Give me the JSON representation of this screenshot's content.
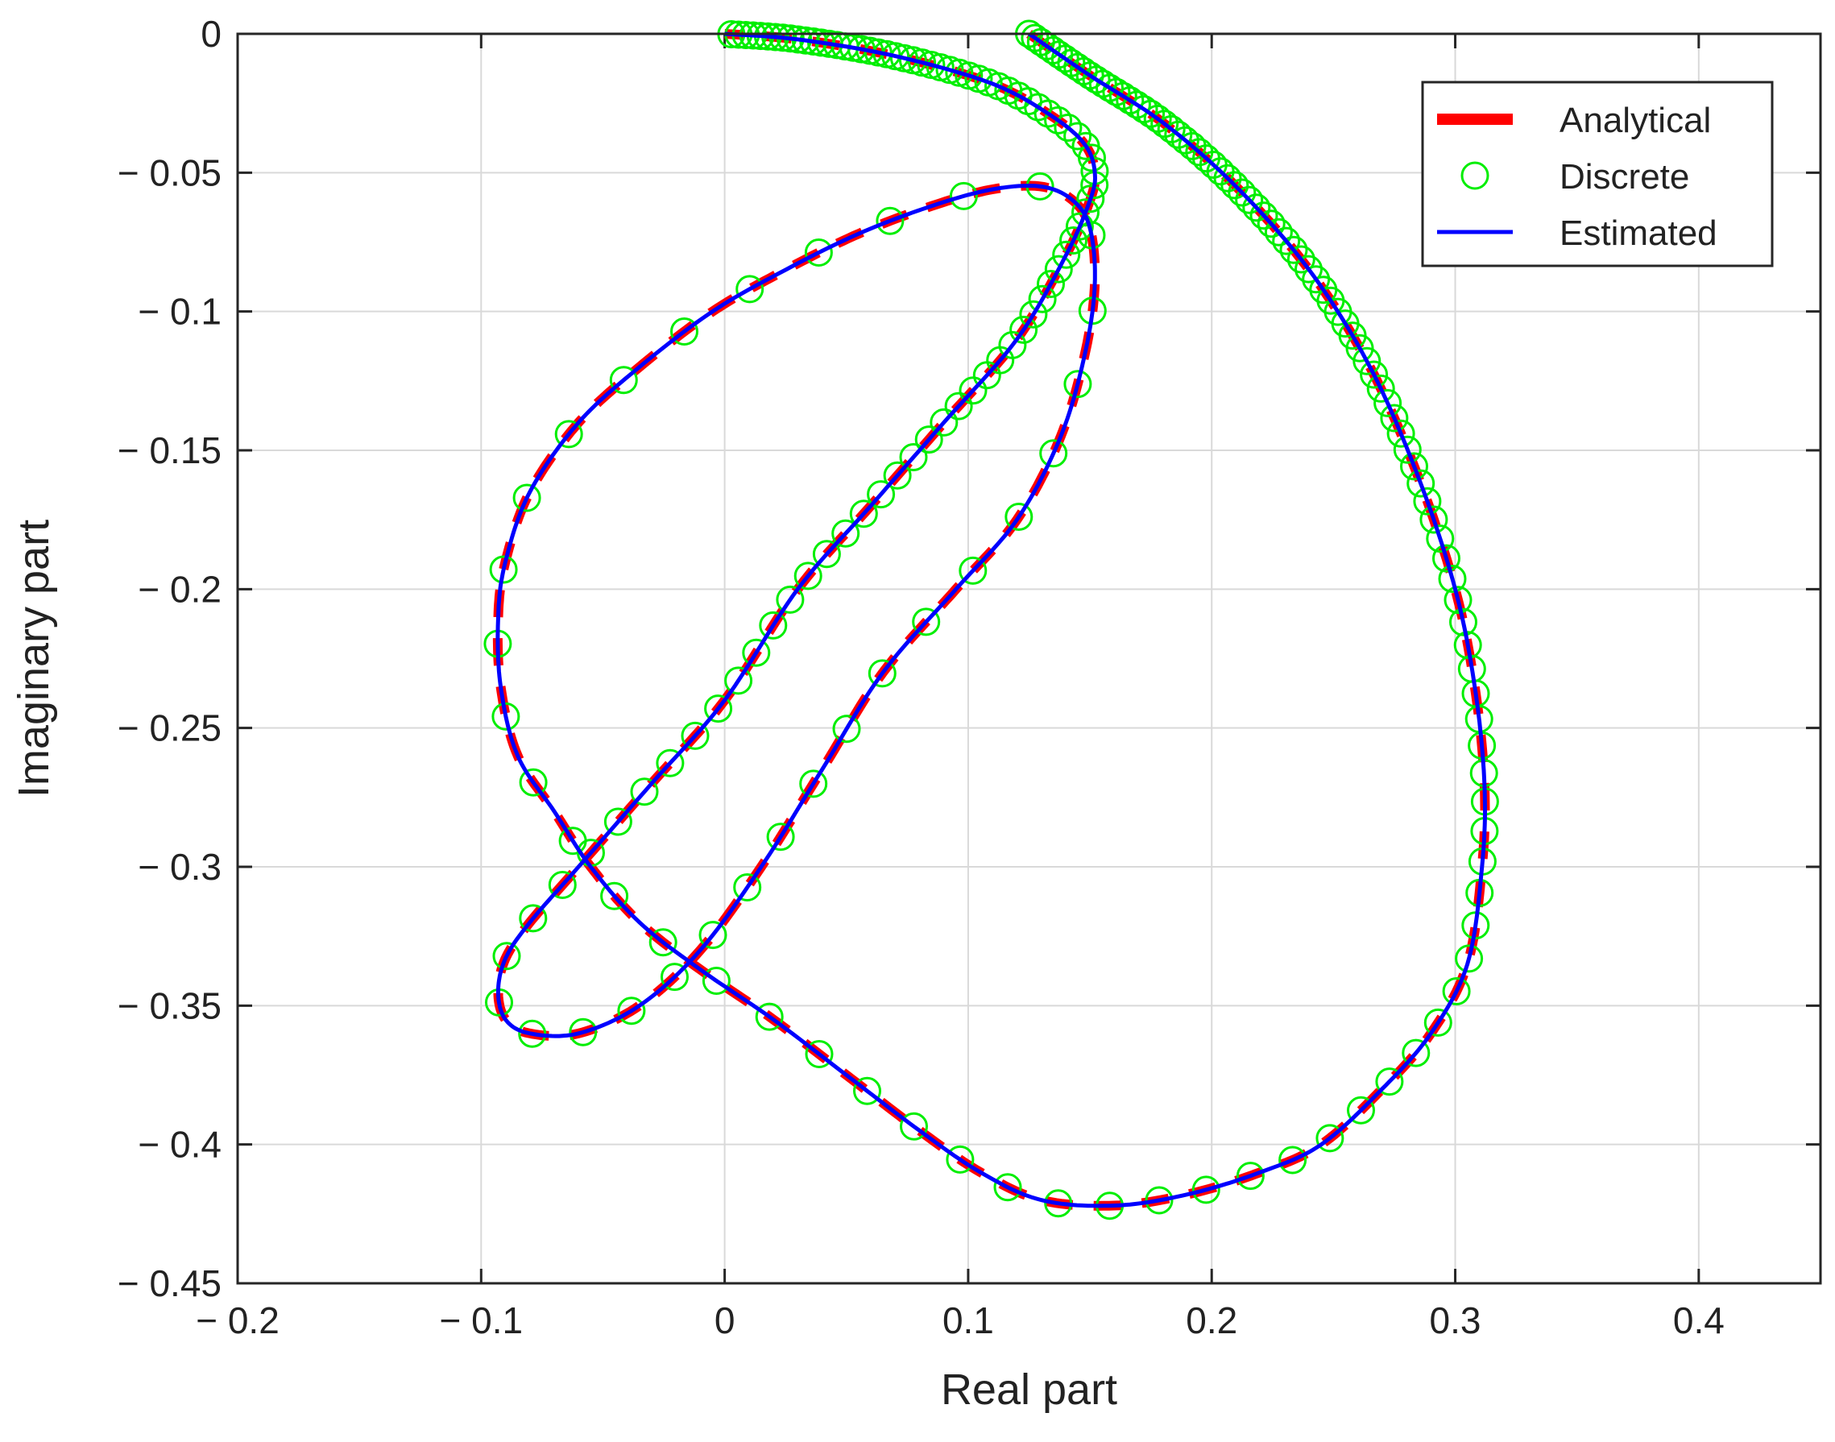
{
  "chart_data": {
    "type": "line",
    "title": "",
    "xlabel": "Real part",
    "ylabel": "Imaginary part",
    "xlim": [
      -0.2,
      0.45
    ],
    "ylim": [
      -0.45,
      0
    ],
    "xticks": [
      -0.2,
      -0.1,
      0,
      0.1,
      0.2,
      0.3,
      0.4
    ],
    "yticks": [
      0,
      -0.05,
      -0.1,
      -0.15,
      -0.2,
      -0.25,
      -0.3,
      -0.35,
      -0.4,
      -0.45
    ],
    "xtick_labels": [
      "− 0.2",
      "− 0.1",
      "0",
      "0.1",
      "0.2",
      "0.3",
      "0.4"
    ],
    "ytick_labels": [
      "0",
      "− 0.05",
      "− 0.1",
      "− 0.15",
      "− 0.2",
      "− 0.25",
      "− 0.3",
      "− 0.35",
      "− 0.4",
      "− 0.45"
    ],
    "grid": true,
    "legend_position": "top-right",
    "curve": {
      "x": [
        0.125,
        0.15,
        0.18,
        0.21,
        0.24,
        0.265,
        0.285,
        0.3,
        0.308,
        0.312,
        0.311,
        0.305,
        0.29,
        0.27,
        0.245,
        0.22,
        0.19,
        0.16,
        0.13,
        0.105,
        0.08,
        0.05,
        0.02,
        -0.01,
        -0.035,
        -0.055,
        -0.07,
        -0.085,
        -0.092,
        -0.093,
        -0.09,
        -0.08,
        -0.06,
        -0.035,
        -0.005,
        0.025,
        0.055,
        0.085,
        0.11,
        0.13,
        0.143,
        0.15,
        0.152,
        0.148,
        0.138,
        0.12,
        0.095,
        0.065,
        0.04,
        0.015,
        -0.01,
        -0.035,
        -0.06,
        -0.08,
        -0.09,
        -0.093,
        -0.09,
        -0.08,
        -0.06,
        -0.03,
        0.0,
        0.03,
        0.06,
        0.09,
        0.12,
        0.14,
        0.15,
        0.152,
        0.148,
        0.135,
        0.11,
        0.07,
        0.03,
        0.0
      ],
      "y": [
        0.0,
        -0.015,
        -0.032,
        -0.055,
        -0.085,
        -0.12,
        -0.16,
        -0.2,
        -0.235,
        -0.27,
        -0.3,
        -0.335,
        -0.36,
        -0.38,
        -0.4,
        -0.41,
        -0.418,
        -0.422,
        -0.42,
        -0.41,
        -0.395,
        -0.375,
        -0.355,
        -0.337,
        -0.32,
        -0.3,
        -0.28,
        -0.26,
        -0.235,
        -0.21,
        -0.19,
        -0.165,
        -0.14,
        -0.12,
        -0.1,
        -0.085,
        -0.072,
        -0.062,
        -0.056,
        -0.055,
        -0.06,
        -0.07,
        -0.09,
        -0.115,
        -0.145,
        -0.175,
        -0.2,
        -0.23,
        -0.265,
        -0.3,
        -0.33,
        -0.35,
        -0.36,
        -0.36,
        -0.355,
        -0.345,
        -0.333,
        -0.32,
        -0.3,
        -0.27,
        -0.24,
        -0.2,
        -0.17,
        -0.14,
        -0.11,
        -0.08,
        -0.06,
        -0.05,
        -0.04,
        -0.03,
        -0.018,
        -0.008,
        -0.002,
        0.0
      ]
    },
    "series": [
      {
        "name": "Analytical",
        "color": "#ff0000",
        "style": "dashed-thick"
      },
      {
        "name": "Discrete",
        "color": "#00ee00",
        "style": "circle-markers"
      },
      {
        "name": "Estimated",
        "color": "#0000ff",
        "style": "solid"
      }
    ]
  }
}
